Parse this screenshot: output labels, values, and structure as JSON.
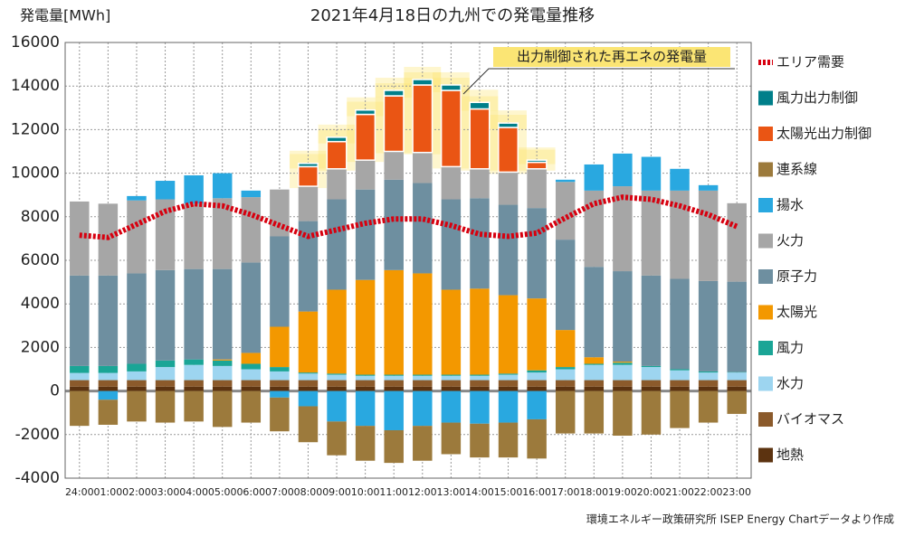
{
  "chart_data": {
    "type": "bar",
    "stacked": true,
    "title": "2021年4月18日の九州での発電量推移",
    "y_label": "発電量[MWh]",
    "annotation": "出力制御された再エネの発電量",
    "source": "環境エネルギー政策研究所 ISEP Energy Chartデータより作成",
    "categories": [
      "24:00",
      "01:00",
      "02:00",
      "03:00",
      "04:00",
      "05:00",
      "06:00",
      "07:00",
      "08:00",
      "09:00",
      "10:00",
      "11:00",
      "12:00",
      "13:00",
      "14:00",
      "15:00",
      "16:00",
      "17:00",
      "18:00",
      "19:00",
      "20:00",
      "21:00",
      "22:00",
      "23:00"
    ],
    "ylim": [
      -4000,
      16000
    ],
    "yticks": [
      -4000,
      -2000,
      0,
      2000,
      4000,
      6000,
      8000,
      10000,
      12000,
      14000,
      16000
    ],
    "grid": true,
    "legend": "right",
    "series": [
      {
        "name": "地熱",
        "color": "#5c3310",
        "values": [
          200,
          200,
          200,
          200,
          200,
          200,
          200,
          200,
          200,
          200,
          200,
          200,
          200,
          200,
          200,
          200,
          200,
          200,
          200,
          200,
          200,
          200,
          200,
          200
        ]
      },
      {
        "name": "バイオマス",
        "color": "#8b5a2b",
        "values": [
          300,
          300,
          300,
          300,
          300,
          300,
          300,
          300,
          300,
          300,
          300,
          300,
          300,
          300,
          300,
          300,
          300,
          300,
          300,
          300,
          300,
          300,
          300,
          300
        ]
      },
      {
        "name": "水力",
        "color": "#9dd5f0",
        "values": [
          330,
          330,
          400,
          600,
          700,
          650,
          500,
          400,
          300,
          250,
          200,
          200,
          200,
          200,
          200,
          250,
          350,
          500,
          700,
          700,
          600,
          450,
          350,
          350
        ]
      },
      {
        "name": "風力",
        "color": "#1aa596",
        "values": [
          320,
          320,
          350,
          300,
          250,
          250,
          250,
          200,
          50,
          50,
          50,
          50,
          50,
          50,
          50,
          50,
          100,
          100,
          50,
          100,
          50,
          50,
          50,
          20
        ]
      },
      {
        "name": "太陽光",
        "color": "#f39800",
        "values": [
          0,
          0,
          0,
          0,
          0,
          50,
          500,
          1850,
          2800,
          3850,
          4350,
          4800,
          4650,
          3900,
          3950,
          3600,
          3300,
          1700,
          300,
          50,
          0,
          0,
          0,
          0
        ]
      },
      {
        "name": "原子力",
        "color": "#6e8fa0",
        "values": [
          4150,
          4150,
          4150,
          4150,
          4150,
          4150,
          4150,
          4150,
          4150,
          4150,
          4150,
          4150,
          4150,
          4150,
          4150,
          4150,
          4150,
          4150,
          4150,
          4150,
          4150,
          4150,
          4150,
          4150
        ]
      },
      {
        "name": "火力",
        "color": "#a6a6a6",
        "values": [
          3400,
          3300,
          3350,
          3250,
          3000,
          3250,
          3000,
          2150,
          1600,
          1400,
          1350,
          1300,
          1400,
          1500,
          1350,
          1500,
          1800,
          2650,
          3500,
          3900,
          3900,
          4050,
          4150,
          3600
        ]
      },
      {
        "name": "揚水",
        "color": "#29a8e0",
        "values": [
          0,
          -400,
          200,
          850,
          1300,
          1150,
          300,
          -300,
          -700,
          -1400,
          -1600,
          -1800,
          -1600,
          -1450,
          -1500,
          -1450,
          -1300,
          100,
          1200,
          1500,
          1550,
          1000,
          250,
          0
        ]
      },
      {
        "name": "連系線",
        "color": "#9c7a3c",
        "values": [
          -1600,
          -1150,
          -1400,
          -1450,
          -1400,
          -1650,
          -1450,
          -1550,
          -1650,
          -1550,
          -1600,
          -1500,
          -1600,
          -1450,
          -1550,
          -1600,
          -1800,
          -1950,
          -1950,
          -2050,
          -2000,
          -1700,
          -1450,
          -1050
        ]
      },
      {
        "name": "太陽光出力制御",
        "color": "#ea5514",
        "curtailment": true,
        "values": [
          0,
          0,
          0,
          0,
          0,
          0,
          0,
          0,
          900,
          1250,
          2100,
          2550,
          3100,
          3500,
          2750,
          2050,
          300,
          0,
          0,
          0,
          0,
          0,
          0,
          0
        ]
      },
      {
        "name": "風力出力制御",
        "color": "#007f8a",
        "curtailment": true,
        "values": [
          0,
          0,
          0,
          0,
          0,
          0,
          0,
          0,
          150,
          200,
          200,
          250,
          250,
          250,
          300,
          200,
          100,
          0,
          0,
          0,
          0,
          0,
          0,
          0
        ]
      }
    ],
    "line_series": {
      "name": "エリア需要",
      "color": "#d7000f",
      "values": [
        7150,
        7050,
        7650,
        8250,
        8600,
        8500,
        8100,
        7600,
        7100,
        7400,
        7700,
        7900,
        7900,
        7600,
        7200,
        7100,
        7250,
        7950,
        8600,
        8900,
        8800,
        8500,
        8100,
        7550
      ]
    }
  }
}
